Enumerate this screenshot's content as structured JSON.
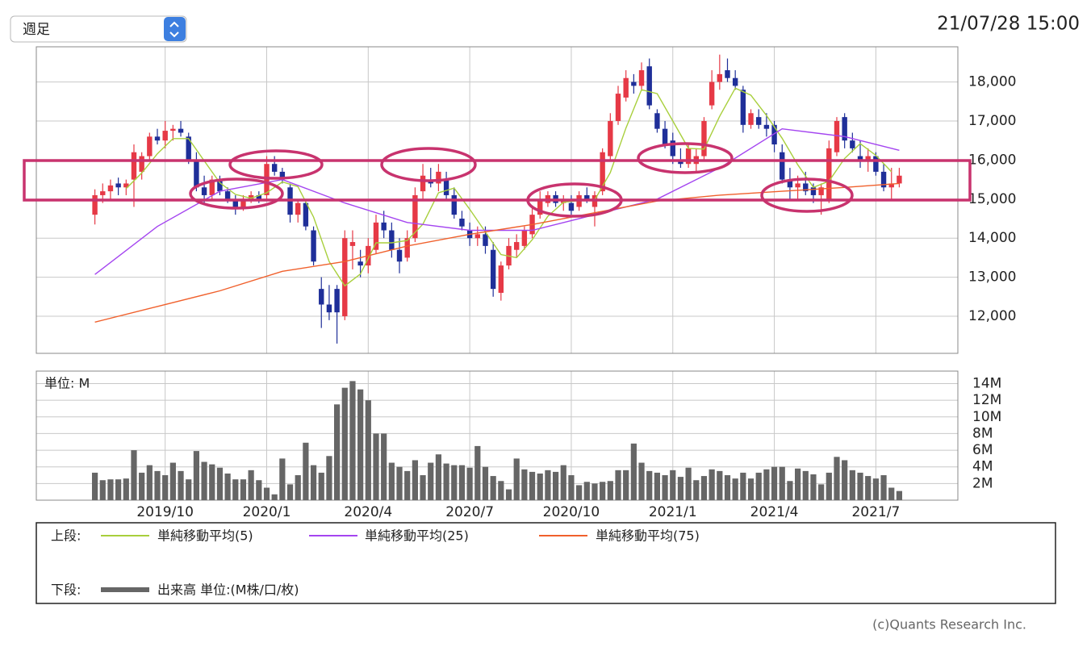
{
  "header": {
    "period_select": "週足",
    "timestamp": "21/07/28 15:00",
    "copyright": "(c)Quants Research Inc."
  },
  "legend": {
    "upper_label": "上段:",
    "lower_label": "下段:"
  },
  "chart_data": [
    {
      "type": "candlestick",
      "up_color": "#e63946",
      "down_color": "#1f2f99",
      "xlim": [
        -7.5,
        110.5
      ],
      "ylim": [
        11050,
        18900
      ],
      "yticks": [
        {
          "value": 12000,
          "label": "12,000"
        },
        {
          "value": 13000,
          "label": "13,000"
        },
        {
          "value": 14000,
          "label": "14,000"
        },
        {
          "value": 15000,
          "label": "15,000"
        },
        {
          "value": 16000,
          "label": "16,000"
        },
        {
          "value": 17000,
          "label": "17,000"
        },
        {
          "value": 18000,
          "label": "18,000"
        }
      ],
      "grid": true,
      "ohlc": [
        [
          14600,
          15250,
          14350,
          15100
        ],
        [
          15100,
          15400,
          14900,
          15200
        ],
        [
          15200,
          15500,
          15000,
          15350
        ],
        [
          15400,
          15550,
          15100,
          15300
        ],
        [
          15300,
          15500,
          15100,
          15400
        ],
        [
          15500,
          16400,
          14800,
          16200
        ],
        [
          15700,
          16200,
          15500,
          16100
        ],
        [
          16100,
          16700,
          16000,
          16600
        ],
        [
          16600,
          16800,
          16400,
          16500
        ],
        [
          16500,
          17000,
          16300,
          16750
        ],
        [
          16750,
          16900,
          16500,
          16800
        ],
        [
          16800,
          17000,
          16600,
          16700
        ],
        [
          16600,
          16700,
          15900,
          16000
        ],
        [
          16000,
          16200,
          15200,
          15300
        ],
        [
          15300,
          15600,
          14900,
          15100
        ],
        [
          15100,
          15600,
          15000,
          15500
        ],
        [
          15500,
          15600,
          15100,
          15200
        ],
        [
          15200,
          15300,
          14900,
          15000
        ],
        [
          15000,
          15100,
          14600,
          14800
        ],
        [
          14800,
          15100,
          14700,
          15000
        ],
        [
          15000,
          15200,
          14900,
          15100
        ],
        [
          15100,
          15200,
          14900,
          15000
        ],
        [
          15100,
          16100,
          15000,
          15900
        ],
        [
          15900,
          16100,
          15600,
          15700
        ],
        [
          15700,
          15800,
          15400,
          15500
        ],
        [
          15300,
          15400,
          14400,
          14600
        ],
        [
          14600,
          15000,
          14400,
          14900
        ],
        [
          14900,
          15000,
          14200,
          14300
        ],
        [
          14200,
          14300,
          13300,
          13400
        ],
        [
          12700,
          13000,
          11700,
          12300
        ],
        [
          12300,
          12800,
          11900,
          12100
        ],
        [
          12700,
          12800,
          11300,
          12100
        ],
        [
          12000,
          14200,
          11900,
          14000
        ],
        [
          13800,
          14200,
          13200,
          13900
        ],
        [
          13400,
          13700,
          13000,
          13300
        ],
        [
          13300,
          14000,
          13100,
          13800
        ],
        [
          13700,
          14600,
          13600,
          14400
        ],
        [
          14400,
          14700,
          14000,
          14200
        ],
        [
          14200,
          14400,
          13500,
          13700
        ],
        [
          13700,
          14000,
          13100,
          13400
        ],
        [
          13500,
          14200,
          13400,
          14000
        ],
        [
          14000,
          15300,
          13900,
          15100
        ],
        [
          15200,
          15900,
          15000,
          15600
        ],
        [
          15500,
          15800,
          15300,
          15400
        ],
        [
          15400,
          15900,
          15200,
          15700
        ],
        [
          15500,
          15700,
          15000,
          15100
        ],
        [
          15100,
          15300,
          14500,
          14600
        ],
        [
          14500,
          14700,
          14200,
          14300
        ],
        [
          14200,
          14400,
          13800,
          14000
        ],
        [
          14000,
          14300,
          13800,
          14100
        ],
        [
          14100,
          14300,
          13600,
          13800
        ],
        [
          13700,
          13900,
          12500,
          12700
        ],
        [
          12600,
          13400,
          12400,
          13300
        ],
        [
          13300,
          14000,
          13200,
          13800
        ],
        [
          13700,
          14100,
          13500,
          13900
        ],
        [
          13800,
          14300,
          13700,
          14200
        ],
        [
          14100,
          14800,
          14000,
          14600
        ],
        [
          14600,
          15200,
          14500,
          15000
        ],
        [
          14900,
          15200,
          14800,
          15100
        ],
        [
          15100,
          15200,
          14800,
          14900
        ],
        [
          14900,
          15100,
          14700,
          15000
        ],
        [
          14900,
          15100,
          14600,
          14700
        ],
        [
          14800,
          15200,
          14700,
          15100
        ],
        [
          15100,
          15300,
          14900,
          15000
        ],
        [
          14800,
          15200,
          14300,
          15100
        ],
        [
          15200,
          16300,
          15100,
          16200
        ],
        [
          16100,
          17200,
          16000,
          17000
        ],
        [
          17000,
          17900,
          16900,
          17700
        ],
        [
          17600,
          18300,
          17500,
          18100
        ],
        [
          18000,
          18200,
          17700,
          17900
        ],
        [
          17900,
          18500,
          17800,
          18300
        ],
        [
          18400,
          18600,
          17300,
          17400
        ],
        [
          17200,
          17300,
          16700,
          16800
        ],
        [
          16800,
          17000,
          16300,
          16400
        ],
        [
          16500,
          16700,
          15900,
          16100
        ],
        [
          16000,
          16300,
          15800,
          15900
        ],
        [
          15900,
          16400,
          15800,
          16300
        ],
        [
          15900,
          16300,
          15700,
          16100
        ],
        [
          16100,
          17100,
          16000,
          17000
        ],
        [
          17400,
          18300,
          17300,
          18000
        ],
        [
          18000,
          18700,
          17800,
          18200
        ],
        [
          18300,
          18600,
          18000,
          18100
        ],
        [
          18100,
          18300,
          17800,
          17900
        ],
        [
          17800,
          17900,
          16700,
          16900
        ],
        [
          16900,
          17300,
          16800,
          17200
        ],
        [
          17100,
          17300,
          16800,
          16900
        ],
        [
          16900,
          17200,
          16600,
          16800
        ],
        [
          16900,
          17000,
          16200,
          16400
        ],
        [
          16200,
          16400,
          15400,
          15500
        ],
        [
          15500,
          15800,
          15000,
          15300
        ],
        [
          15300,
          15600,
          15000,
          15400
        ],
        [
          15400,
          15700,
          15100,
          15200
        ],
        [
          15300,
          15400,
          14900,
          15100
        ],
        [
          15100,
          15400,
          14600,
          15300
        ],
        [
          15000,
          16500,
          14900,
          16300
        ],
        [
          16200,
          17100,
          16100,
          17000
        ],
        [
          17100,
          17200,
          16300,
          16500
        ],
        [
          16500,
          16700,
          16200,
          16300
        ],
        [
          16100,
          16500,
          15800,
          16000
        ],
        [
          16000,
          16300,
          15700,
          16100
        ],
        [
          16100,
          16200,
          15600,
          15700
        ],
        [
          15700,
          15900,
          15200,
          15300
        ],
        [
          15300,
          15800,
          15000,
          15400
        ],
        [
          15400,
          15800,
          15300,
          15600
        ]
      ],
      "series": [
        {
          "name": "単純移動平均(5)",
          "color": "#a8cf3c",
          "x": [
            4,
            6,
            8,
            10,
            12,
            14,
            16,
            18,
            20,
            22,
            24,
            26,
            28,
            30,
            32,
            34,
            36,
            38,
            40,
            42,
            44,
            46,
            48,
            50,
            52,
            54,
            56,
            58,
            60,
            62,
            64,
            66,
            68,
            70,
            72,
            74,
            76,
            78,
            80,
            82,
            84,
            86,
            88,
            90,
            92,
            94,
            96,
            98,
            100,
            102
          ],
          "values": [
            15270,
            15670,
            16160,
            16550,
            16550,
            15980,
            15420,
            15120,
            15020,
            15160,
            15440,
            15320,
            14540,
            13400,
            12780,
            13080,
            13880,
            13880,
            13940,
            14360,
            15160,
            15280,
            14740,
            14160,
            13580,
            13500,
            13960,
            14560,
            14920,
            14960,
            14980,
            15680,
            16820,
            17800,
            17700,
            17000,
            16300,
            16280,
            17120,
            17840,
            17660,
            17140,
            16560,
            15880,
            15300,
            15460,
            16040,
            16420,
            16120,
            15700
          ]
        },
        {
          "name": "単純移動平均(25)",
          "color": "#a445f0",
          "x": [
            0,
            8,
            16,
            24,
            32,
            40,
            48,
            56,
            64,
            72,
            80,
            88,
            96,
            103
          ],
          "values": [
            13070,
            14300,
            15200,
            15500,
            14900,
            14400,
            14200,
            14200,
            14600,
            15000,
            15800,
            16800,
            16600,
            16250
          ]
        },
        {
          "name": "単純移動平均(75)",
          "color": "#f0602c",
          "x": [
            0,
            8,
            16,
            24,
            32,
            40,
            48,
            56,
            64,
            72,
            80,
            88,
            96,
            103
          ],
          "values": [
            11850,
            12250,
            12650,
            13150,
            13400,
            13800,
            14100,
            14350,
            14650,
            14950,
            15100,
            15200,
            15300,
            15400
          ]
        }
      ]
    },
    {
      "type": "bar",
      "unit_label": "単位: M",
      "xlim": [
        -7.5,
        110.5
      ],
      "ylim": [
        0,
        15.5
      ],
      "xticks": [
        {
          "value": 9,
          "label": "2019/10"
        },
        {
          "value": 22,
          "label": "2020/1"
        },
        {
          "value": 35,
          "label": "2020/4"
        },
        {
          "value": 48,
          "label": "2020/7"
        },
        {
          "value": 61,
          "label": "2020/10"
        },
        {
          "value": 74,
          "label": "2021/1"
        },
        {
          "value": 87,
          "label": "2021/4"
        },
        {
          "value": 100,
          "label": "2021/7"
        }
      ],
      "yticks": [
        {
          "value": 2,
          "label": "2M"
        },
        {
          "value": 4,
          "label": "4M"
        },
        {
          "value": 6,
          "label": "6M"
        },
        {
          "value": 8,
          "label": "8M"
        },
        {
          "value": 10,
          "label": "10M"
        },
        {
          "value": 12,
          "label": "12M"
        },
        {
          "value": 14,
          "label": "14M"
        }
      ],
      "grid": true,
      "series": [
        {
          "name": "出来高 単位:(M株/口/枚)",
          "color": "#666666",
          "values": [
            3.3,
            2.4,
            2.5,
            2.5,
            2.6,
            6.0,
            3.3,
            4.2,
            3.5,
            3.0,
            4.5,
            3.5,
            2.5,
            5.9,
            4.6,
            4.3,
            3.9,
            3.2,
            2.5,
            2.5,
            3.6,
            2.4,
            1.5,
            0.7,
            5.0,
            1.9,
            3.0,
            6.9,
            4.2,
            3.3,
            5.3,
            11.5,
            13.5,
            14.3,
            13.3,
            12.0,
            8.0,
            8.0,
            4.5,
            4.0,
            3.5,
            4.8,
            3.0,
            4.5,
            5.5,
            4.4,
            4.2,
            4.2,
            3.9,
            6.5,
            4.0,
            2.9,
            2.3,
            1.3,
            5.0,
            3.7,
            3.4,
            3.2,
            3.6,
            3.4,
            4.2,
            3.0,
            1.8,
            2.2,
            2.0,
            2.2,
            2.3,
            3.6,
            3.6,
            6.8,
            4.5,
            3.5,
            3.3,
            3.0,
            3.6,
            2.8,
            3.9,
            2.4,
            2.9,
            3.7,
            3.5,
            3.0,
            2.6,
            3.3,
            2.6,
            3.3,
            3.7,
            4.0,
            4.0,
            2.3,
            3.8,
            3.5,
            3.1,
            1.9,
            3.3,
            5.2,
            4.8,
            3.6,
            3.3,
            2.9,
            2.6,
            3.0,
            1.5,
            1.1
          ]
        }
      ]
    }
  ]
}
